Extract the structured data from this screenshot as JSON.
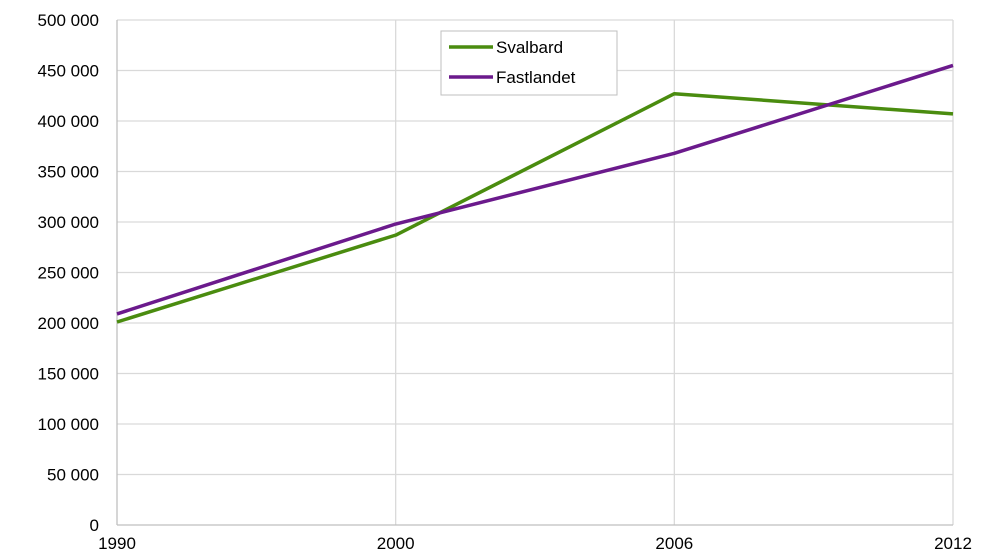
{
  "chart_data": {
    "type": "line",
    "title": "",
    "xlabel": "",
    "ylabel": "",
    "x": [
      "1990",
      "2000",
      "2006",
      "2012"
    ],
    "ylim": [
      0,
      500000
    ],
    "yticks": [
      0,
      50000,
      100000,
      150000,
      200000,
      250000,
      300000,
      350000,
      400000,
      450000,
      500000
    ],
    "ytick_labels": [
      "0",
      "50 000",
      "100 000",
      "150 000",
      "200 000",
      "250 000",
      "300 000",
      "350 000",
      "400 000",
      "450 000",
      "500 000"
    ],
    "grid": true,
    "legend_position": "top-center",
    "series": [
      {
        "name": "Svalbard",
        "color": "#4a8c0f",
        "values": [
          201000,
          287000,
          427000,
          407000
        ]
      },
      {
        "name": "Fastlandet",
        "color": "#6b1a8c",
        "values": [
          209000,
          298000,
          368000,
          455000
        ]
      }
    ]
  }
}
